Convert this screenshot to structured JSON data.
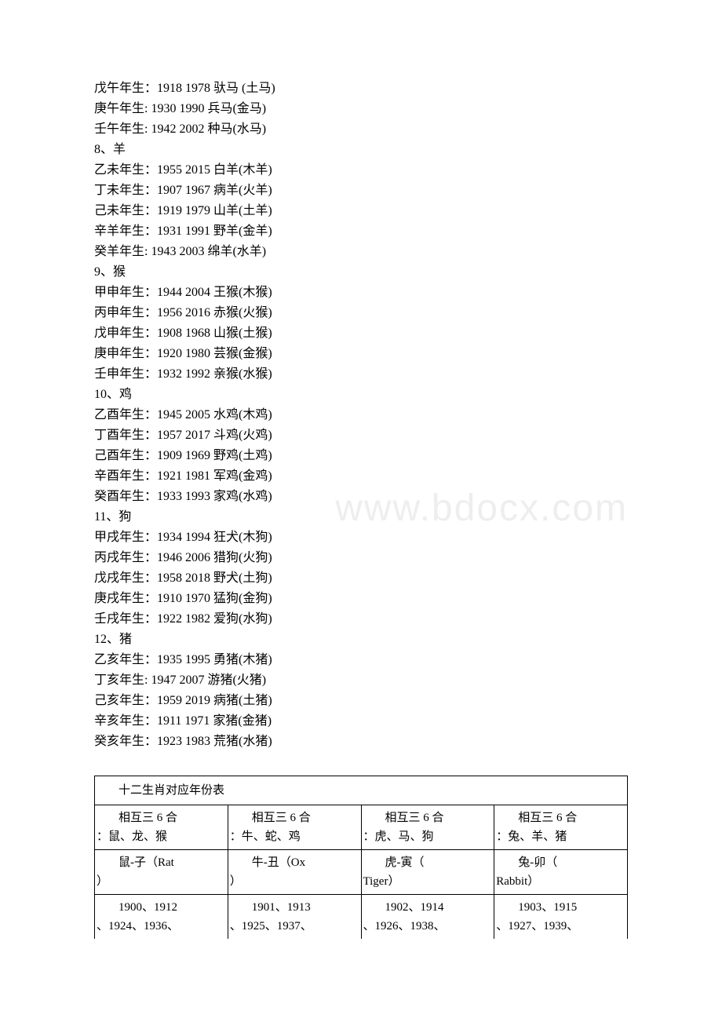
{
  "watermark": "www.bdocx.com",
  "lines": [
    "戊午年生：1918 1978 驮马 (土马)",
    "庚午年生: 1930 1990 兵马(金马)",
    "壬午年生: 1942 2002 种马(水马)",
    "8、羊",
    "乙未年生：1955 2015 白羊(木羊)",
    "丁未年生：1907 1967 病羊(火羊)",
    "己未年生：1919 1979 山羊(土羊)",
    "辛羊年生：1931 1991 野羊(金羊)",
    "癸羊年生: 1943 2003 绵羊(水羊)",
    "9、猴",
    "甲申年生：1944 2004 王猴(木猴)",
    "丙申年生：1956 2016 赤猴(火猴)",
    "戊申年生：1908 1968 山猴(土猴)",
    "庚申年生：1920 1980 芸猴(金猴)",
    "壬申年生：1932 1992 亲猴(水猴)",
    "10、鸡",
    "乙酉年生：1945 2005 水鸡(木鸡)",
    "丁酉年生：1957 2017 斗鸡(火鸡)",
    "己酉年生：1909 1969 野鸡(土鸡)",
    "辛酉年生：1921 1981 军鸡(金鸡)",
    "癸酉年生：1933 1993 家鸡(水鸡)",
    "11、狗",
    "甲戌年生：1934 1994 狂犬(木狗)",
    "丙戌年生：1946 2006 猎狗(火狗)",
    "戊戌年生：1958 2018 野犬(土狗)",
    "庚戌年生：1910 1970 猛狗(金狗)",
    "壬戌年生：1922 1982 爱狗(水狗)",
    "12、猪",
    "乙亥年生：1935 1995 勇猪(木猪)",
    "丁亥年生: 1947 2007 游猪(火猪)",
    "己亥年生：1959 2019 病猪(土猪)",
    "辛亥年生：1911 1971 家猪(金猪)",
    "癸亥年生：1923 1983 荒猪(水猪)"
  ],
  "table": {
    "title": "十二生肖对应年份表",
    "header_row": [
      {
        "indent": "相互三 6 合",
        "hang": "：鼠、龙、猴"
      },
      {
        "indent": "相互三 6 合",
        "hang": "：牛、蛇、鸡"
      },
      {
        "indent": "相互三 6 合",
        "hang": "：虎、马、狗"
      },
      {
        "indent": "相互三 6 合",
        "hang": "：兔、羊、猪"
      }
    ],
    "name_row": [
      {
        "indent": "鼠-子（Rat",
        "hang": "）"
      },
      {
        "indent": "牛-丑（Ox",
        "hang": "）"
      },
      {
        "indent": "虎-寅（",
        "hang": "Tiger）"
      },
      {
        "indent": "兔-卯（",
        "hang": "Rabbit）"
      }
    ],
    "years_row": [
      {
        "indent": "1900、1912",
        "hang": "、1924、1936、"
      },
      {
        "indent": "1901、1913",
        "hang": "、1925、1937、"
      },
      {
        "indent": "1902、1914",
        "hang": "、1926、1938、"
      },
      {
        "indent": "1903、1915",
        "hang": "、1927、1939、"
      }
    ]
  },
  "colors": {
    "background": "#ffffff",
    "text": "#000000",
    "border": "#000000",
    "watermark": "#eeeeee"
  }
}
